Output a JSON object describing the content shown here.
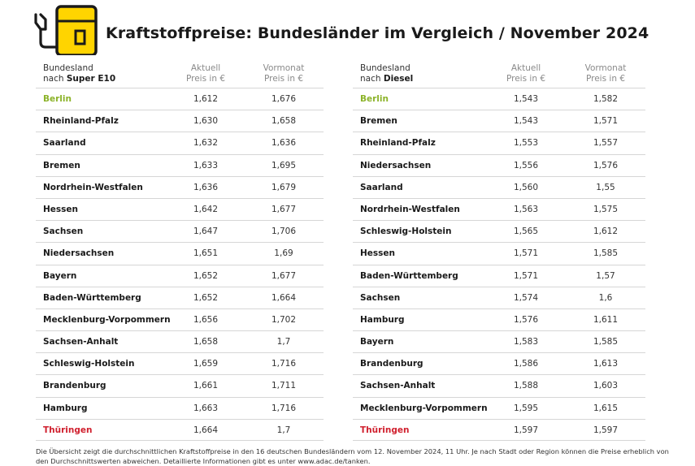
{
  "title": "Kraftstoffpreise: Bundesländer im Vergleich / November 2024",
  "colors": {
    "accent_yellow": "#FFD400",
    "best_green": "#8CB32A",
    "worst_red": "#D0202E"
  },
  "left": {
    "header": {
      "col1_line1": "Bundesland",
      "col1_prefix": "nach ",
      "col1_fuel": "Super E10",
      "col2_line1": "Aktuell",
      "col2_line2": "Preis in €",
      "col3_line1": "Vormonat",
      "col3_line2": "Preis in €"
    },
    "rows": [
      {
        "name": "Berlin",
        "current": "1,612",
        "previous": "1,676"
      },
      {
        "name": "Rheinland-Pfalz",
        "current": "1,630",
        "previous": "1,658"
      },
      {
        "name": "Saarland",
        "current": "1,632",
        "previous": "1,636"
      },
      {
        "name": "Bremen",
        "current": "1,633",
        "previous": "1,695"
      },
      {
        "name": "Nordrhein-Westfalen",
        "current": "1,636",
        "previous": "1,679"
      },
      {
        "name": "Hessen",
        "current": "1,642",
        "previous": "1,677"
      },
      {
        "name": "Sachsen",
        "current": "1,647",
        "previous": "1,706"
      },
      {
        "name": "Niedersachsen",
        "current": "1,651",
        "previous": "1,69"
      },
      {
        "name": "Bayern",
        "current": "1,652",
        "previous": "1,677"
      },
      {
        "name": "Baden-Württemberg",
        "current": "1,652",
        "previous": "1,664"
      },
      {
        "name": "Mecklenburg-Vorpommern",
        "current": "1,656",
        "previous": "1,702"
      },
      {
        "name": "Sachsen-Anhalt",
        "current": "1,658",
        "previous": "1,7"
      },
      {
        "name": "Schleswig-Holstein",
        "current": "1,659",
        "previous": "1,716"
      },
      {
        "name": "Brandenburg",
        "current": "1,661",
        "previous": "1,711"
      },
      {
        "name": "Hamburg",
        "current": "1,663",
        "previous": "1,716"
      },
      {
        "name": "Thüringen",
        "current": "1,664",
        "previous": "1,7"
      }
    ]
  },
  "right": {
    "header": {
      "col1_line1": "Bundesland",
      "col1_prefix": "nach ",
      "col1_fuel": "Diesel",
      "col2_line1": "Aktuell",
      "col2_line2": "Preis in €",
      "col3_line1": "Vormonat",
      "col3_line2": "Preis in €"
    },
    "rows": [
      {
        "name": "Berlin",
        "current": "1,543",
        "previous": "1,582"
      },
      {
        "name": "Bremen",
        "current": "1,543",
        "previous": "1,571"
      },
      {
        "name": "Rheinland-Pfalz",
        "current": "1,553",
        "previous": "1,557"
      },
      {
        "name": "Niedersachsen",
        "current": "1,556",
        "previous": "1,576"
      },
      {
        "name": "Saarland",
        "current": "1,560",
        "previous": "1,55"
      },
      {
        "name": "Nordrhein-Westfalen",
        "current": "1,563",
        "previous": "1,575"
      },
      {
        "name": "Schleswig-Holstein",
        "current": "1,565",
        "previous": "1,612"
      },
      {
        "name": "Hessen",
        "current": "1,571",
        "previous": "1,585"
      },
      {
        "name": "Baden-Württemberg",
        "current": "1,571",
        "previous": "1,57"
      },
      {
        "name": "Sachsen",
        "current": "1,574",
        "previous": "1,6"
      },
      {
        "name": "Hamburg",
        "current": "1,576",
        "previous": "1,611"
      },
      {
        "name": "Bayern",
        "current": "1,583",
        "previous": "1,585"
      },
      {
        "name": "Brandenburg",
        "current": "1,586",
        "previous": "1,613"
      },
      {
        "name": "Sachsen-Anhalt",
        "current": "1,588",
        "previous": "1,603"
      },
      {
        "name": "Mecklenburg-Vorpommern",
        "current": "1,595",
        "previous": "1,615"
      },
      {
        "name": "Thüringen",
        "current": "1,597",
        "previous": "1,597"
      }
    ]
  },
  "footnote": "Die Übersicht zeigt die durchschnittlichen Kraftstoffpreise in den 16 deutschen Bundesländern vom 12. November 2024, 11 Uhr. Je nach Stadt oder Region können die Preise erheblich von den Durchschnittswerten abweichen. Detaillierte Informationen gibt es unter www.adac.de/tanken."
}
